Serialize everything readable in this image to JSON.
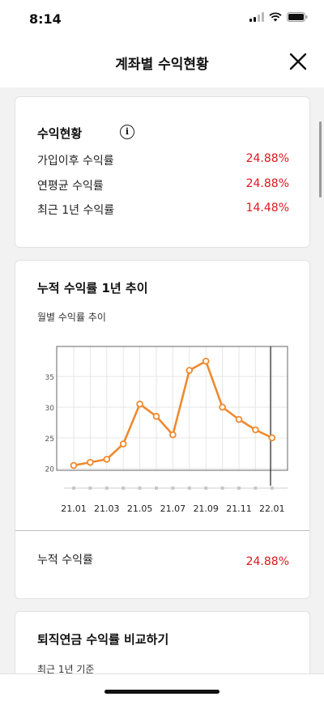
{
  "status": {
    "time": "8:14"
  },
  "header": {
    "title": "계좌별 수익현황"
  },
  "summary": {
    "title": "수익현황",
    "info_icon_glyph": "i",
    "rows": [
      {
        "label": "가입이후 수익률",
        "value": "24.88%"
      },
      {
        "label": "연평균 수익률",
        "value": "24.88%"
      },
      {
        "label": "최근 1년 수익률",
        "value": "14.48%"
      }
    ]
  },
  "trend": {
    "title": "누적 수익률 1년 추이",
    "subtitle": "월별 수익률 추이",
    "cumulative_label": "누적 수익률",
    "cumulative_value": "24.88%"
  },
  "chart_data": {
    "type": "line",
    "categories": [
      "21.01",
      "21.02",
      "21.03",
      "21.04",
      "21.05",
      "21.06",
      "21.07",
      "21.08",
      "21.09",
      "21.10",
      "21.11",
      "21.12",
      "22.01"
    ],
    "tick_labels": [
      "21.01",
      "21.03",
      "21.05",
      "21.07",
      "21.09",
      "21.11",
      "22.01"
    ],
    "y_ticks": [
      20,
      25,
      30,
      35
    ],
    "ylim": [
      19.7,
      39.9
    ],
    "series": [
      {
        "values": [
          20.5,
          21.0,
          21.5,
          24.0,
          30.5,
          28.5,
          25.5,
          36.0,
          37.5,
          30.0,
          28.0,
          26.3,
          25.0
        ]
      }
    ],
    "line_color": "#ef8a2f",
    "grid": true
  },
  "compare": {
    "title": "퇴직연금 수익률 비교하기",
    "subtitle": "최근 1년 기준"
  }
}
